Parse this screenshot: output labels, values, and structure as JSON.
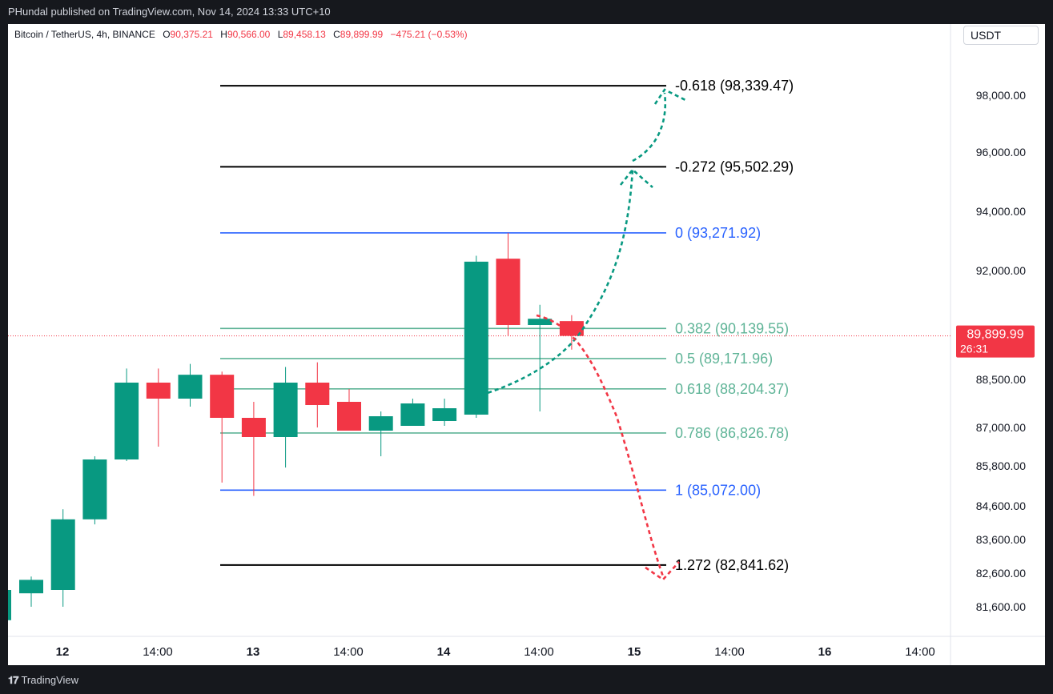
{
  "header": {
    "published": "PHundal published on TradingView.com, Nov 14, 2024 13:33 UTC+10"
  },
  "legend": {
    "symbol": "Bitcoin / TetherUS, 4h, BINANCE",
    "open_label": "O",
    "open": "90,375.21",
    "high_label": "H",
    "high": "90,566.00",
    "low_label": "L",
    "low": "89,458.13",
    "close_label": "C",
    "close": "89,899.99",
    "change": "−475.21 (−0.53%)"
  },
  "currency": "USDT",
  "price_tag": {
    "price": "89,899.99",
    "countdown": "26:31",
    "color": "#f23645"
  },
  "footer": {
    "brand": "TradingView"
  },
  "colors": {
    "up": "#089981",
    "down": "#f23645",
    "fib_blue": "#2962ff",
    "fib_green": "#5fb497",
    "fib_black": "#000000"
  },
  "chart_data": {
    "type": "candlestick",
    "ylabel": "",
    "y_ticks": [
      {
        "value": 98000,
        "label": "98,000.00"
      },
      {
        "value": 96000,
        "label": "96,000.00"
      },
      {
        "value": 94000,
        "label": "94,000.00"
      },
      {
        "value": 92000,
        "label": "92,000.00"
      },
      {
        "value": 88500,
        "label": "88,500.00"
      },
      {
        "value": 87000,
        "label": "87,000.00"
      },
      {
        "value": 85800,
        "label": "85,800.00"
      },
      {
        "value": 84600,
        "label": "84,600.00"
      },
      {
        "value": 83600,
        "label": "83,600.00"
      },
      {
        "value": 82600,
        "label": "82,600.00"
      },
      {
        "value": 81600,
        "label": "81,600.00"
      }
    ],
    "x_ticks": [
      {
        "label": "12",
        "bold": true
      },
      {
        "label": "14:00",
        "bold": false
      },
      {
        "label": "13",
        "bold": true
      },
      {
        "label": "14:00",
        "bold": false
      },
      {
        "label": "14",
        "bold": true
      },
      {
        "label": "14:00",
        "bold": false
      },
      {
        "label": "15",
        "bold": true
      },
      {
        "label": "14:00",
        "bold": false
      },
      {
        "label": "16",
        "bold": true
      },
      {
        "label": "14:00",
        "bold": false
      }
    ],
    "candles": [
      {
        "o": 82000,
        "h": 82500,
        "l": 81600,
        "c": 82400
      },
      {
        "o": 82100,
        "h": 84500,
        "l": 81600,
        "c": 84200
      },
      {
        "o": 84200,
        "h": 86100,
        "l": 84050,
        "c": 86000
      },
      {
        "o": 86000,
        "h": 88850,
        "l": 85950,
        "c": 88400
      },
      {
        "o": 88400,
        "h": 88850,
        "l": 86400,
        "c": 87900
      },
      {
        "o": 87900,
        "h": 89000,
        "l": 87650,
        "c": 88650
      },
      {
        "o": 88650,
        "h": 88750,
        "l": 85300,
        "c": 87300
      },
      {
        "o": 87300,
        "h": 87800,
        "l": 84900,
        "c": 86700
      },
      {
        "o": 86700,
        "h": 88900,
        "l": 85750,
        "c": 88400
      },
      {
        "o": 88400,
        "h": 89050,
        "l": 87000,
        "c": 87700
      },
      {
        "o": 87800,
        "h": 88200,
        "l": 86900,
        "c": 86900
      },
      {
        "o": 86900,
        "h": 87500,
        "l": 86100,
        "c": 87350
      },
      {
        "o": 87050,
        "h": 87900,
        "l": 87050,
        "c": 87750
      },
      {
        "o": 87200,
        "h": 87900,
        "l": 87050,
        "c": 87600
      },
      {
        "o": 87400,
        "h": 92500,
        "l": 87300,
        "c": 92300
      },
      {
        "o": 92400,
        "h": 93272,
        "l": 89900,
        "c": 90250
      },
      {
        "o": 90250,
        "h": 90900,
        "l": 87500,
        "c": 90450
      },
      {
        "o": 90375,
        "h": 90566,
        "l": 89458,
        "c": 89900
      }
    ],
    "last_price": 89899.99,
    "fib_levels": [
      {
        "ratio": "-0.618",
        "price": 98339.47,
        "label": "-0.618 (98,339.47)",
        "color": "black"
      },
      {
        "ratio": "-0.272",
        "price": 95502.29,
        "label": "-0.272 (95,502.29)",
        "color": "black"
      },
      {
        "ratio": "0",
        "price": 93271.92,
        "label": "0 (93,271.92)",
        "color": "blue"
      },
      {
        "ratio": "0.382",
        "price": 90139.55,
        "label": "0.382 (90,139.55)",
        "color": "green"
      },
      {
        "ratio": "0.5",
        "price": 89171.96,
        "label": "0.5 (89,171.96)",
        "color": "green"
      },
      {
        "ratio": "0.618",
        "price": 88204.37,
        "label": "0.618 (88,204.37)",
        "color": "green"
      },
      {
        "ratio": "0.786",
        "price": 86826.78,
        "label": "0.786 (86,826.78)",
        "color": "green"
      },
      {
        "ratio": "1",
        "price": 85072.0,
        "label": "1 (85,072.00)",
        "color": "blue"
      },
      {
        "ratio": "1.272",
        "price": 82841.62,
        "label": "1.272 (82,841.62)",
        "color": "black"
      }
    ]
  }
}
